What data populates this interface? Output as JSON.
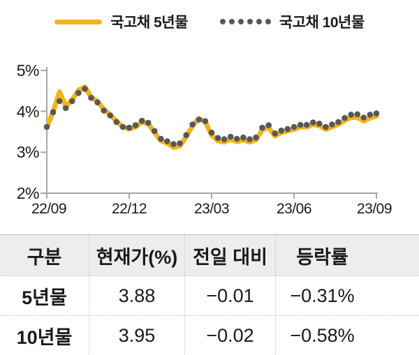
{
  "colors": {
    "series5": "#F5B41B",
    "series10": "#58585A",
    "axis": "#A6A6A6",
    "table_header_bg": "#EDEDED",
    "table_border_dotted": "#C4C4C4",
    "text": "#1A1A1A"
  },
  "chart_data": {
    "type": "line",
    "title": "",
    "xlabel": "",
    "ylabel": "",
    "ylim": [
      2,
      5
    ],
    "grid": false,
    "legend_position": "top",
    "y_tick_labels": [
      "5%",
      "4%",
      "3%",
      "2%"
    ],
    "x_tick_labels": [
      "22/09",
      "22/12",
      "23/03",
      "23/06",
      "23/09"
    ],
    "x_unit": "weekly samples from 22/09 to 23/09",
    "series": [
      {
        "name": "국고채 5년물",
        "style": "solid",
        "color": "#F5B41B",
        "values": [
          3.6,
          4.0,
          4.48,
          4.12,
          4.28,
          4.52,
          4.6,
          4.35,
          4.24,
          4.05,
          3.92,
          3.76,
          3.62,
          3.57,
          3.62,
          3.74,
          3.7,
          3.48,
          3.28,
          3.22,
          3.12,
          3.15,
          3.38,
          3.65,
          3.82,
          3.75,
          3.42,
          3.28,
          3.25,
          3.32,
          3.26,
          3.3,
          3.25,
          3.3,
          3.55,
          3.6,
          3.4,
          3.48,
          3.52,
          3.56,
          3.62,
          3.62,
          3.68,
          3.65,
          3.56,
          3.62,
          3.68,
          3.78,
          3.85,
          3.85,
          3.76,
          3.84,
          3.88
        ]
      },
      {
        "name": "국고채 10년물",
        "style": "dotted",
        "color": "#58585A",
        "values": [
          3.62,
          3.98,
          4.25,
          4.08,
          4.25,
          4.45,
          4.55,
          4.33,
          4.22,
          4.02,
          3.9,
          3.74,
          3.62,
          3.6,
          3.66,
          3.77,
          3.72,
          3.52,
          3.33,
          3.27,
          3.2,
          3.22,
          3.42,
          3.68,
          3.8,
          3.76,
          3.48,
          3.35,
          3.32,
          3.38,
          3.33,
          3.36,
          3.32,
          3.36,
          3.6,
          3.66,
          3.46,
          3.53,
          3.57,
          3.62,
          3.67,
          3.67,
          3.73,
          3.7,
          3.62,
          3.68,
          3.74,
          3.84,
          3.92,
          3.93,
          3.85,
          3.92,
          3.95
        ]
      }
    ]
  },
  "table": {
    "headers": [
      "구분",
      "현재가(%)",
      "전일 대비",
      "등락률"
    ],
    "rows": [
      {
        "name": "5년물",
        "current": "3.88",
        "change": "−0.01",
        "pct": "−0.31%"
      },
      {
        "name": "10년물",
        "current": "3.95",
        "change": "−0.02",
        "pct": "−0.58%"
      }
    ]
  }
}
